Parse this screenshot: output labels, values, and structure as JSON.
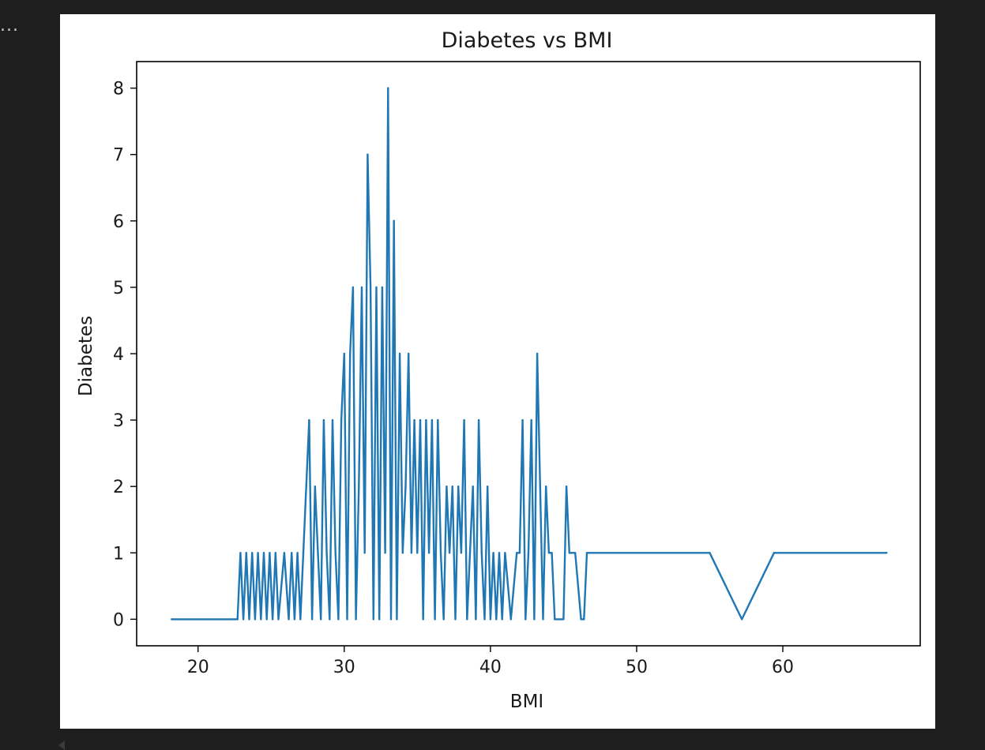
{
  "output": {
    "prompt_ellipsis": "..."
  },
  "colors": {
    "background": "#1e1e1e",
    "figure_background": "#ffffff",
    "line": "#1f77b4",
    "axis": "#000000"
  },
  "chart_data": {
    "type": "line",
    "title": "Diabetes vs  BMI",
    "xlabel": "BMI",
    "ylabel": "Diabetes",
    "xlim": [
      15.8,
      69.4
    ],
    "ylim": [
      -0.4,
      8.4
    ],
    "xticks": [
      20,
      30,
      40,
      50,
      60
    ],
    "yticks": [
      0,
      1,
      2,
      3,
      4,
      5,
      6,
      7,
      8
    ],
    "grid": false,
    "legend": "none",
    "series": [
      {
        "x": [
          18.2,
          22.7,
          22.9,
          23.1,
          23.3,
          23.5,
          23.7,
          23.9,
          24.1,
          24.3,
          24.5,
          24.7,
          24.9,
          25.1,
          25.3,
          25.5,
          25.9,
          26.2,
          26.4,
          26.6,
          26.8,
          27.0,
          27.2,
          27.4,
          27.6,
          27.8,
          28.0,
          28.2,
          28.4,
          28.6,
          28.8,
          29.0,
          29.2,
          29.4,
          29.6,
          29.8,
          30.0,
          30.2,
          30.4,
          30.6,
          30.8,
          31.0,
          31.2,
          31.4,
          31.6,
          31.8,
          32.0,
          32.2,
          32.4,
          32.6,
          32.8,
          33.0,
          33.2,
          33.4,
          33.6,
          33.8,
          34.0,
          34.2,
          34.4,
          34.6,
          34.8,
          35.0,
          35.2,
          35.4,
          35.6,
          35.8,
          36.0,
          36.2,
          36.4,
          36.6,
          36.8,
          37.0,
          37.2,
          37.4,
          37.6,
          37.8,
          38.0,
          38.2,
          38.4,
          38.6,
          38.8,
          39.0,
          39.2,
          39.4,
          39.6,
          39.8,
          40.0,
          40.2,
          40.4,
          40.6,
          40.8,
          41.0,
          41.4,
          41.8,
          42.0,
          42.2,
          42.4,
          42.6,
          42.8,
          43.0,
          43.2,
          43.4,
          43.6,
          43.8,
          44.0,
          44.2,
          44.4,
          44.6,
          45.0,
          45.2,
          45.4,
          45.6,
          45.8,
          46.2,
          46.4,
          46.6,
          46.8,
          55.0,
          57.2,
          59.4,
          67.1
        ],
        "y": [
          0,
          0,
          1,
          0,
          1,
          0,
          1,
          0,
          1,
          0,
          1,
          0,
          1,
          0,
          1,
          0,
          1,
          0,
          1,
          0,
          1,
          0,
          1,
          2,
          3,
          0,
          2,
          1,
          0,
          3,
          1,
          0,
          3,
          1,
          0,
          3,
          4,
          0,
          4,
          5,
          0,
          2,
          5,
          1,
          7,
          5,
          0,
          5,
          0,
          5,
          1,
          8,
          0,
          6,
          0,
          4,
          1,
          2,
          4,
          1,
          3,
          1,
          3,
          0,
          3,
          1,
          3,
          0,
          3,
          1,
          0,
          2,
          1,
          2,
          0,
          2,
          1,
          3,
          0,
          1,
          2,
          0,
          3,
          1,
          0,
          2,
          0,
          1,
          0,
          1,
          0,
          1,
          0,
          1,
          1,
          3,
          0,
          1,
          3,
          0,
          4,
          2,
          0,
          2,
          1,
          1,
          0,
          0,
          0,
          2,
          1,
          1,
          1,
          0,
          0,
          1,
          1,
          1,
          0,
          1,
          1
        ]
      }
    ]
  }
}
